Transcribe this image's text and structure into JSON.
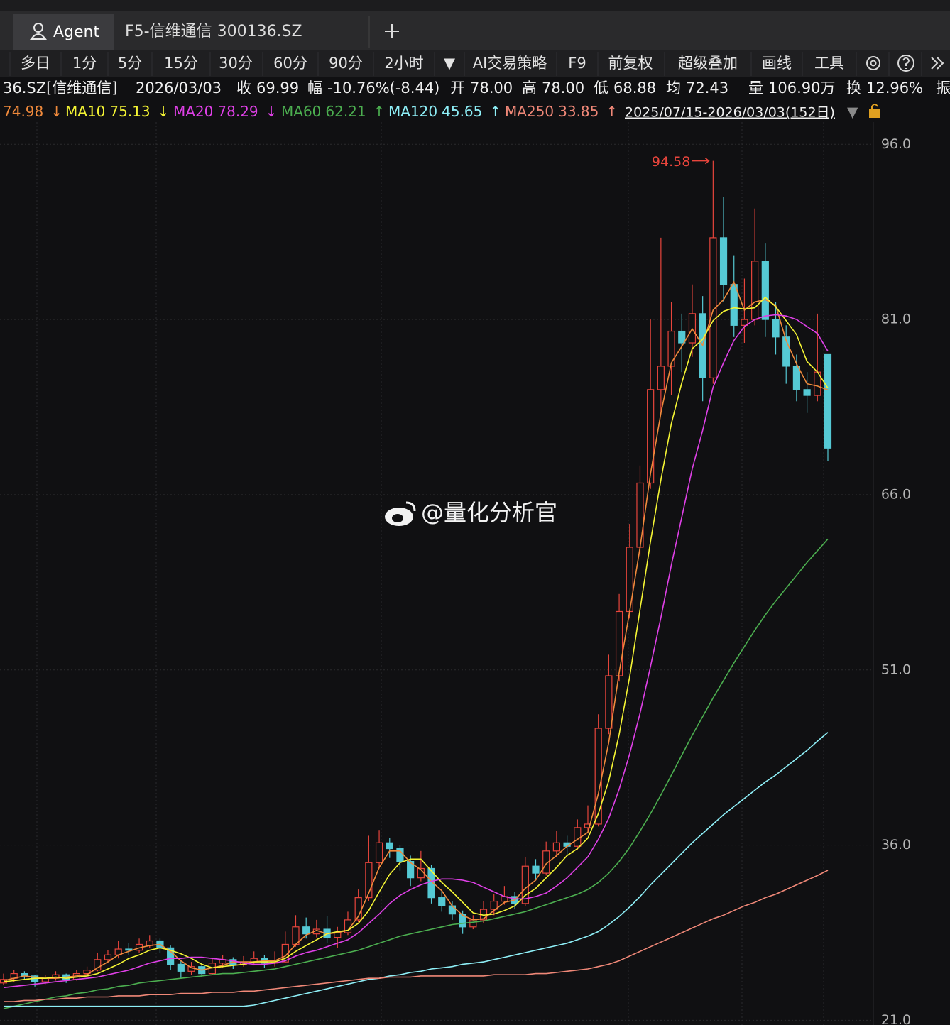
{
  "tabs": [
    "Agent",
    "F5-信维通信 300136.SZ"
  ],
  "toolbar": [
    "多日",
    "1分",
    "5分",
    "15分",
    "30分",
    "60分",
    "90分",
    "2小时",
    "▼",
    "AI交易策略",
    "F9",
    "前复权",
    "超级叠加",
    "画线",
    "工具"
  ],
  "quote": {
    "code": "36.SZ[信维通信]",
    "date": "2026/03/03",
    "fields": [
      {
        "label": "收",
        "value": "69.99",
        "color": "#4cc35a"
      },
      {
        "label": "幅",
        "value": "-10.76%(-8.44)",
        "color": "#4cc35a"
      },
      {
        "label": "开",
        "value": "78.00",
        "color": "#4cc35a"
      },
      {
        "label": "高",
        "value": "78.00",
        "color": "#4cc35a"
      },
      {
        "label": "低",
        "value": "68.88",
        "color": "#4cc35a"
      },
      {
        "label": "均",
        "value": "72.43",
        "color": "#4cc35a"
      },
      {
        "label": "量",
        "value": "106.90万",
        "color": "#ffffff"
      },
      {
        "label": "换",
        "value": "12.96%",
        "color": "#ffffff"
      },
      {
        "label": "振",
        "value": "",
        "color": "#ffffff"
      }
    ]
  },
  "range_label": "2025/07/15-2026/03/03(152日)",
  "watermark": "@量化分析官",
  "chart_data": {
    "type": "candlestick",
    "up_color": "#e8453c",
    "down_color": "#55c9d4",
    "ylim": [
      20.6,
      97.9
    ],
    "yticks": [
      {
        "value": 96,
        "label": "96.0"
      },
      {
        "value": 81,
        "label": "81.0"
      },
      {
        "value": 66,
        "label": "66.0"
      },
      {
        "value": 51,
        "label": "51.0"
      },
      {
        "value": 36,
        "label": "36.0"
      },
      {
        "value": 21,
        "label": "21.0"
      }
    ],
    "grid": true,
    "max_annotation": 94.58,
    "open": [
      24.2,
      24.6,
      25.0,
      24.8,
      24.3,
      24.6,
      24.9,
      24.5,
      25.0,
      25.3,
      26.2,
      26.6,
      27.1,
      27.0,
      27.4,
      27.8,
      27.2,
      25.8,
      25.2,
      25.6,
      25.0,
      25.9,
      26.2,
      25.8,
      26.0,
      26.3,
      25.9,
      26.0,
      27.5,
      29.0,
      28.4,
      28.8,
      28.1,
      28.5,
      29.6,
      31.5,
      34.5,
      36.2,
      35.7,
      34.6,
      33.2,
      34.0,
      31.5,
      30.8,
      30.1,
      29.0,
      29.6,
      30.5,
      31.2,
      31.6,
      31.0,
      34.2,
      33.6,
      35.5,
      36.2,
      35.9,
      37.5,
      37.8,
      46.0,
      50.5,
      56.0,
      61.5,
      67.0,
      75.0,
      77.0,
      80.0,
      79.0,
      81.5,
      76.0,
      88.0,
      84.0,
      80.5,
      81.0,
      86.0,
      81.0,
      79.5,
      77.0,
      75.0,
      74.5,
      78.0
    ],
    "high": [
      25.0,
      25.3,
      25.2,
      24.9,
      24.9,
      25.2,
      25.0,
      25.3,
      25.6,
      26.8,
      27.0,
      27.8,
      27.6,
      28.0,
      28.3,
      28.0,
      27.4,
      26.2,
      26.0,
      25.9,
      26.3,
      26.6,
      26.4,
      26.5,
      26.9,
      26.6,
      26.9,
      28.6,
      30.0,
      29.8,
      29.6,
      29.9,
      29.0,
      30.3,
      32.2,
      36.8,
      37.3,
      36.6,
      36.0,
      35.1,
      35.5,
      34.3,
      32.1,
      31.2,
      30.4,
      30.0,
      31.2,
      31.8,
      32.5,
      32.0,
      35.0,
      34.8,
      36.3,
      37.2,
      36.8,
      38.2,
      39.4,
      47.2,
      52.3,
      57.5,
      63.5,
      68.5,
      81.0,
      88.0,
      82.5,
      81.5,
      84.0,
      83.0,
      94.58,
      91.5,
      86.5,
      84.5,
      90.5,
      87.5,
      82.5,
      80.5,
      78.0,
      76.5,
      81.5,
      78.0
    ],
    "low": [
      24.0,
      24.3,
      24.5,
      23.9,
      24.1,
      24.4,
      24.2,
      24.4,
      24.8,
      25.2,
      25.9,
      26.3,
      26.6,
      26.8,
      27.2,
      26.8,
      25.3,
      24.6,
      24.9,
      24.7,
      24.9,
      25.5,
      25.4,
      25.6,
      25.7,
      25.5,
      25.6,
      25.9,
      27.3,
      28.0,
      28.1,
      27.6,
      27.2,
      28.3,
      29.4,
      31.2,
      34.0,
      34.9,
      33.8,
      32.5,
      32.9,
      31.0,
      30.3,
      29.6,
      28.4,
      28.8,
      29.3,
      30.0,
      30.9,
      30.5,
      30.8,
      33.1,
      33.4,
      35.0,
      35.2,
      35.6,
      37.0,
      37.6,
      45.5,
      50.0,
      55.4,
      60.8,
      66.5,
      73.0,
      74.5,
      76.5,
      77.8,
      74.0,
      75.5,
      82.5,
      79.5,
      79.0,
      80.5,
      79.5,
      78.0,
      75.5,
      74.0,
      73.0,
      74.0,
      68.88
    ],
    "close": [
      24.5,
      25.0,
      24.8,
      24.3,
      24.6,
      24.9,
      24.5,
      25.0,
      25.3,
      26.2,
      26.6,
      27.1,
      27.0,
      27.5,
      27.8,
      27.2,
      25.8,
      25.2,
      25.6,
      25.0,
      25.9,
      26.2,
      25.8,
      26.0,
      26.3,
      25.9,
      26.0,
      27.5,
      29.0,
      28.4,
      28.8,
      28.1,
      28.5,
      29.6,
      31.5,
      34.5,
      36.2,
      35.7,
      34.6,
      33.2,
      34.0,
      31.5,
      30.8,
      30.1,
      29.0,
      29.6,
      30.5,
      31.2,
      31.6,
      31.0,
      34.2,
      33.6,
      35.5,
      36.2,
      35.9,
      37.5,
      37.8,
      46.0,
      50.5,
      56.0,
      61.5,
      67.0,
      75.0,
      77.0,
      80.0,
      79.0,
      81.5,
      76.0,
      88.0,
      84.0,
      80.5,
      81.0,
      86.0,
      81.0,
      79.5,
      77.0,
      75.0,
      74.5,
      76.5,
      69.99
    ],
    "series": [
      {
        "color": "#f08a3c",
        "trend": "↓",
        "values": [
          24.4,
          24.6,
          24.8,
          24.7,
          24.6,
          24.6,
          24.7,
          24.8,
          24.9,
          25.5,
          26.0,
          26.6,
          26.9,
          27.2,
          27.4,
          27.5,
          26.9,
          26.1,
          25.5,
          25.3,
          25.5,
          25.7,
          26.0,
          26.0,
          26.0,
          26.1,
          26.1,
          26.5,
          27.5,
          28.3,
          28.7,
          28.4,
          28.5,
          28.7,
          29.9,
          31.9,
          34.1,
          35.5,
          35.5,
          34.5,
          33.9,
          32.9,
          32.1,
          30.8,
          30.0,
          29.6,
          29.7,
          30.4,
          31.1,
          31.3,
          32.3,
          33.0,
          34.4,
          35.1,
          35.9,
          36.5,
          37.1,
          40.4,
          44.8,
          50.8,
          56.0,
          61.5,
          67.8,
          73.0,
          77.3,
          78.7,
          80.2,
          78.8,
          81.8,
          82.7,
          84.2,
          81.8,
          82.5,
          82.7,
          82.2,
          79.2,
          77.2,
          75.5,
          75.3,
          74.98
        ]
      },
      {
        "name": "MA10",
        "color": "#f5f534",
        "trend": "↓",
        "values": [
          24.3,
          24.4,
          24.5,
          24.6,
          24.6,
          24.7,
          24.6,
          24.7,
          24.8,
          25.0,
          25.4,
          25.8,
          26.3,
          26.6,
          27.0,
          27.2,
          27.0,
          26.7,
          26.3,
          25.8,
          25.5,
          25.6,
          25.7,
          25.8,
          26.0,
          26.0,
          26.0,
          26.3,
          26.9,
          27.4,
          27.9,
          28.4,
          28.6,
          28.7,
          29.3,
          30.4,
          32.0,
          33.5,
          34.5,
          34.8,
          34.8,
          33.8,
          32.8,
          32.0,
          31.1,
          30.2,
          30.0,
          30.1,
          30.4,
          30.8,
          31.7,
          32.3,
          33.2,
          34.1,
          35.1,
          35.7,
          36.6,
          38.7,
          41.5,
          45.5,
          50.4,
          56.2,
          62.0,
          67.3,
          72.1,
          75.6,
          78.5,
          79.3,
          80.9,
          81.7,
          82.0,
          81.9,
          82.0,
          82.9,
          82.1,
          80.9,
          79.7,
          77.4,
          76.5,
          75.13
        ]
      },
      {
        "name": "MA20",
        "color": "#e040e8",
        "trend": "↓",
        "values": [
          23.8,
          23.9,
          24.0,
          24.1,
          24.2,
          24.3,
          24.4,
          24.5,
          24.6,
          24.7,
          24.9,
          25.1,
          25.3,
          25.6,
          25.9,
          26.1,
          26.3,
          26.3,
          26.4,
          26.4,
          26.3,
          26.2,
          26.1,
          25.9,
          25.8,
          25.8,
          25.9,
          26.1,
          26.5,
          26.8,
          27.0,
          27.3,
          27.6,
          27.9,
          28.5,
          29.3,
          30.1,
          31.0,
          31.7,
          32.2,
          32.6,
          32.9,
          33.1,
          33.1,
          33.0,
          32.8,
          32.4,
          32.0,
          31.6,
          31.4,
          31.4,
          31.6,
          31.9,
          32.5,
          33.2,
          34.1,
          35.0,
          36.5,
          38.3,
          40.8,
          43.8,
          47.3,
          51.3,
          55.5,
          60.0,
          64.1,
          68.2,
          71.5,
          75.2,
          77.3,
          79.2,
          80.4,
          81.0,
          81.3,
          81.4,
          81.3,
          81.0,
          80.4,
          79.8,
          78.29
        ]
      },
      {
        "name": "MA60",
        "color": "#4caf50",
        "trend": "↑",
        "values": [
          22.0,
          22.2,
          22.4,
          22.6,
          22.8,
          23.0,
          23.1,
          23.3,
          23.4,
          23.6,
          23.7,
          23.9,
          24.0,
          24.2,
          24.3,
          24.4,
          24.5,
          24.6,
          24.7,
          24.8,
          24.9,
          25.0,
          25.0,
          25.1,
          25.2,
          25.3,
          25.4,
          25.6,
          25.8,
          26.0,
          26.2,
          26.4,
          26.6,
          26.8,
          27.0,
          27.3,
          27.6,
          27.9,
          28.2,
          28.4,
          28.6,
          28.8,
          29.0,
          29.2,
          29.3,
          29.4,
          29.5,
          29.7,
          29.9,
          30.1,
          30.3,
          30.6,
          30.9,
          31.2,
          31.5,
          31.8,
          32.2,
          32.8,
          33.6,
          34.6,
          35.8,
          37.2,
          38.7,
          40.3,
          42.0,
          43.7,
          45.4,
          47.0,
          48.6,
          50.1,
          51.6,
          53.0,
          54.4,
          55.7,
          56.9,
          58.0,
          59.1,
          60.2,
          61.2,
          62.21
        ]
      },
      {
        "name": "MA120",
        "color": "#8ff0f8",
        "trend": "↑",
        "values": [
          22.2,
          22.2,
          22.2,
          22.2,
          22.2,
          22.2,
          22.2,
          22.2,
          22.2,
          22.2,
          22.2,
          22.2,
          22.2,
          22.2,
          22.2,
          22.2,
          22.2,
          22.2,
          22.2,
          22.2,
          22.2,
          22.2,
          22.2,
          22.2,
          22.3,
          22.5,
          22.7,
          22.9,
          23.1,
          23.3,
          23.5,
          23.7,
          23.9,
          24.1,
          24.3,
          24.5,
          24.6,
          24.8,
          24.9,
          25.1,
          25.2,
          25.4,
          25.5,
          25.6,
          25.8,
          25.9,
          26.0,
          26.2,
          26.4,
          26.6,
          26.8,
          27.0,
          27.2,
          27.4,
          27.6,
          27.9,
          28.2,
          28.6,
          29.2,
          29.9,
          30.7,
          31.6,
          32.6,
          33.5,
          34.4,
          35.3,
          36.2,
          37.0,
          37.8,
          38.6,
          39.3,
          40.0,
          40.7,
          41.4,
          42.0,
          42.7,
          43.4,
          44.1,
          44.9,
          45.65
        ]
      },
      {
        "name": "MA250",
        "color": "#f08878",
        "trend": "↑",
        "values": [
          22.6,
          22.6,
          22.7,
          22.7,
          22.8,
          22.8,
          22.9,
          22.9,
          23.0,
          23.0,
          23.0,
          23.1,
          23.1,
          23.1,
          23.2,
          23.2,
          23.2,
          23.3,
          23.3,
          23.3,
          23.4,
          23.4,
          23.4,
          23.5,
          23.5,
          23.6,
          23.7,
          23.8,
          23.9,
          24.0,
          24.1,
          24.2,
          24.3,
          24.4,
          24.5,
          24.6,
          24.6,
          24.7,
          24.7,
          24.7,
          24.8,
          24.8,
          24.8,
          24.8,
          24.8,
          24.8,
          24.8,
          24.9,
          24.9,
          24.9,
          24.9,
          25.0,
          25.0,
          25.1,
          25.2,
          25.3,
          25.4,
          25.6,
          25.8,
          26.1,
          26.5,
          26.9,
          27.3,
          27.7,
          28.1,
          28.5,
          28.9,
          29.3,
          29.7,
          30.0,
          30.4,
          30.8,
          31.1,
          31.5,
          31.8,
          32.2,
          32.6,
          33.0,
          33.4,
          33.85
        ]
      }
    ]
  }
}
